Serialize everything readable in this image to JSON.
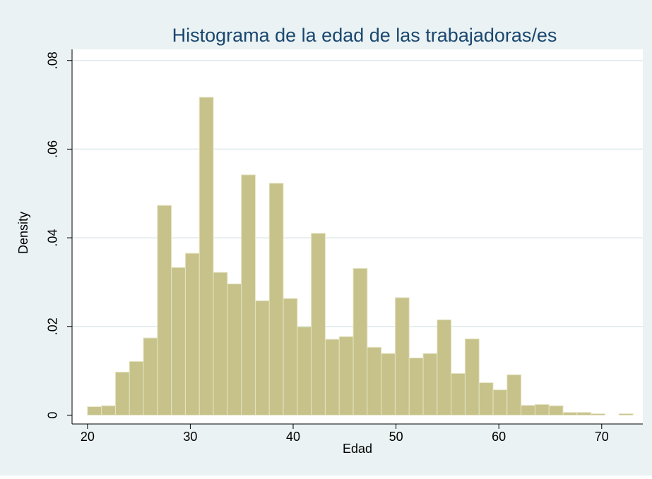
{
  "chart_data": {
    "type": "histogram",
    "title": "Histograma de la edad de las trabajadoras/es",
    "xlabel": "Edad",
    "ylabel": "Density",
    "bins": [
      20,
      21.36,
      22.72,
      24.08,
      25.44,
      26.8,
      28.16,
      29.52,
      30.88,
      32.24,
      33.6,
      34.96,
      36.32,
      37.68,
      39.04,
      40.4,
      41.76,
      43.12,
      44.48,
      45.84,
      47.2,
      48.56,
      49.92,
      51.28,
      52.64,
      54,
      55.36,
      56.72,
      58.08,
      59.44,
      60.8,
      62.16,
      63.52,
      64.88,
      66.24,
      67.6,
      68.96,
      70.32,
      71.68,
      73.04
    ],
    "values": [
      0.0019,
      0.0021,
      0.0097,
      0.0121,
      0.0174,
      0.0473,
      0.0333,
      0.0365,
      0.0717,
      0.0322,
      0.0296,
      0.0542,
      0.0258,
      0.0523,
      0.0263,
      0.0199,
      0.041,
      0.0171,
      0.0177,
      0.0331,
      0.0153,
      0.0139,
      0.0265,
      0.0129,
      0.0139,
      0.0215,
      0.0094,
      0.0172,
      0.0073,
      0.0057,
      0.0091,
      0.0022,
      0.0024,
      0.0021,
      0.0006,
      0.0006,
      0.0003,
      0,
      0.0003
    ],
    "color": "#c6c28a",
    "xlim": [
      18.5,
      74
    ],
    "xticks": [
      20,
      30,
      40,
      50,
      60,
      70
    ],
    "ylim": [
      -0.002,
      0.0825
    ],
    "yticks": [
      0,
      {
        "value": 0.02,
        "label": ".02"
      },
      {
        "value": 0.04,
        "label": ".04"
      },
      {
        "value": 0.06,
        "label": ".06"
      },
      {
        "value": 0.08,
        "label": ".08"
      }
    ],
    "grid": true
  }
}
